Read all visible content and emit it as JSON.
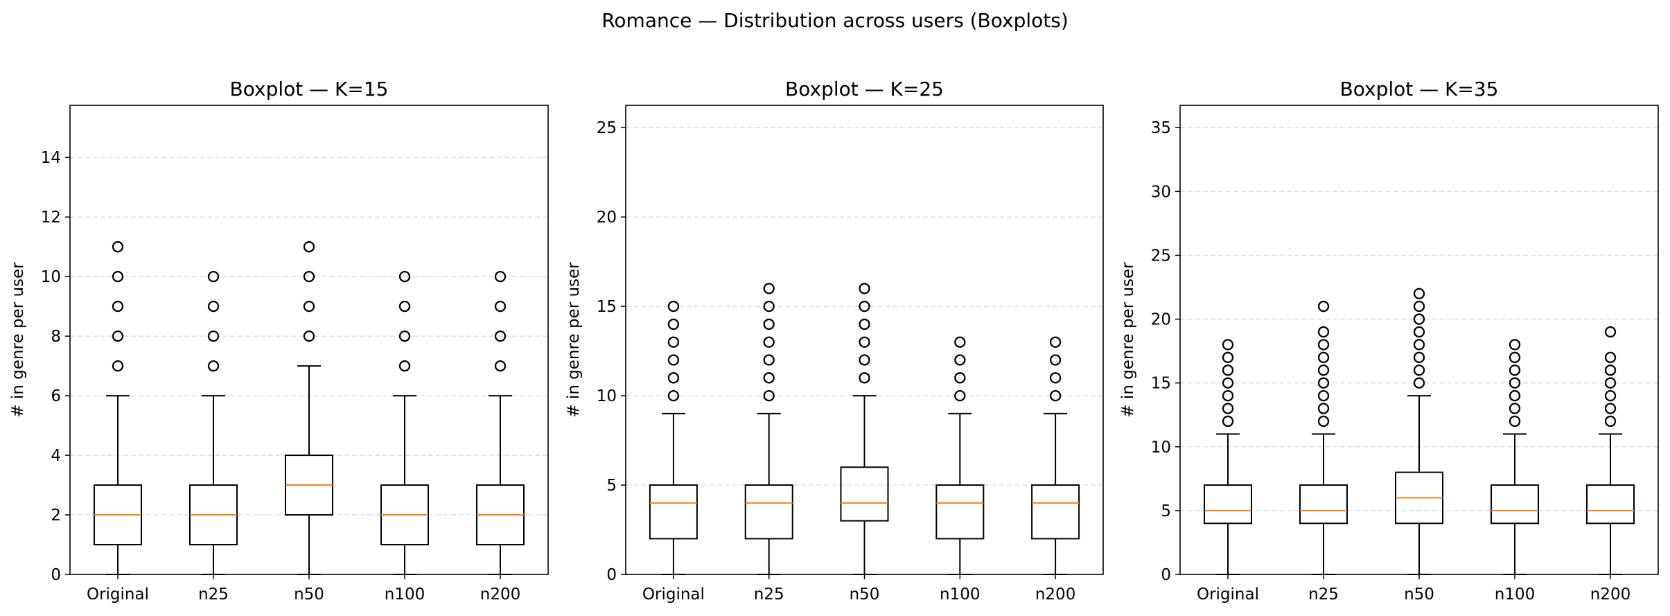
{
  "figure": {
    "suptitle": "Romance — Distribution across users (Boxplots)"
  },
  "chart_data": [
    {
      "type": "boxplot",
      "title": "Boxplot — K=15",
      "xlabel": "",
      "ylabel": "# in genre per user",
      "ylim": [
        0,
        15.75
      ],
      "yticks": [
        0,
        2,
        4,
        6,
        8,
        10,
        12,
        14
      ],
      "y_grid": true,
      "categories": [
        "Original",
        "n25",
        "n50",
        "n100",
        "n200"
      ],
      "boxes": [
        {
          "q1": 1,
          "median": 2,
          "q3": 3,
          "whisker_low": 0,
          "whisker_high": 6,
          "outliers": [
            7,
            8,
            9,
            10,
            11
          ]
        },
        {
          "q1": 1,
          "median": 2,
          "q3": 3,
          "whisker_low": 0,
          "whisker_high": 6,
          "outliers": [
            7,
            8,
            9,
            10
          ]
        },
        {
          "q1": 2,
          "median": 3,
          "q3": 4,
          "whisker_low": 0,
          "whisker_high": 7,
          "outliers": [
            8,
            9,
            10,
            11
          ]
        },
        {
          "q1": 1,
          "median": 2,
          "q3": 3,
          "whisker_low": 0,
          "whisker_high": 6,
          "outliers": [
            7,
            8,
            9,
            10
          ]
        },
        {
          "q1": 1,
          "median": 2,
          "q3": 3,
          "whisker_low": 0,
          "whisker_high": 6,
          "outliers": [
            7,
            8,
            9,
            10
          ]
        }
      ]
    },
    {
      "type": "boxplot",
      "title": "Boxplot — K=25",
      "xlabel": "",
      "ylabel": "# in genre per user",
      "ylim": [
        0,
        26.25
      ],
      "yticks": [
        0,
        5,
        10,
        15,
        20,
        25
      ],
      "y_grid": true,
      "categories": [
        "Original",
        "n25",
        "n50",
        "n100",
        "n200"
      ],
      "boxes": [
        {
          "q1": 2,
          "median": 4,
          "q3": 5,
          "whisker_low": 0,
          "whisker_high": 9,
          "outliers": [
            10,
            11,
            12,
            13,
            14,
            15
          ]
        },
        {
          "q1": 2,
          "median": 4,
          "q3": 5,
          "whisker_low": 0,
          "whisker_high": 9,
          "outliers": [
            10,
            11,
            12,
            13,
            14,
            15,
            16
          ]
        },
        {
          "q1": 3,
          "median": 4,
          "q3": 6,
          "whisker_low": 0,
          "whisker_high": 10,
          "outliers": [
            11,
            12,
            13,
            14,
            15,
            16
          ]
        },
        {
          "q1": 2,
          "median": 4,
          "q3": 5,
          "whisker_low": 0,
          "whisker_high": 9,
          "outliers": [
            10,
            11,
            12,
            13
          ]
        },
        {
          "q1": 2,
          "median": 4,
          "q3": 5,
          "whisker_low": 0,
          "whisker_high": 9,
          "outliers": [
            10,
            11,
            12,
            13
          ]
        }
      ]
    },
    {
      "type": "boxplot",
      "title": "Boxplot — K=35",
      "xlabel": "",
      "ylabel": "# in genre per user",
      "ylim": [
        0,
        36.75
      ],
      "yticks": [
        0,
        5,
        10,
        15,
        20,
        25,
        30,
        35
      ],
      "y_grid": true,
      "categories": [
        "Original",
        "n25",
        "n50",
        "n100",
        "n200"
      ],
      "boxes": [
        {
          "q1": 4,
          "median": 5,
          "q3": 7,
          "whisker_low": 0,
          "whisker_high": 11,
          "outliers": [
            12,
            13,
            14,
            15,
            16,
            17,
            18
          ]
        },
        {
          "q1": 4,
          "median": 5,
          "q3": 7,
          "whisker_low": 0,
          "whisker_high": 11,
          "outliers": [
            12,
            13,
            14,
            15,
            16,
            17,
            18,
            19,
            21
          ]
        },
        {
          "q1": 4,
          "median": 6,
          "q3": 8,
          "whisker_low": 0,
          "whisker_high": 14,
          "outliers": [
            15,
            16,
            17,
            18,
            19,
            20,
            21,
            22
          ]
        },
        {
          "q1": 4,
          "median": 5,
          "q3": 7,
          "whisker_low": 0,
          "whisker_high": 11,
          "outliers": [
            12,
            13,
            14,
            15,
            16,
            17,
            18
          ]
        },
        {
          "q1": 4,
          "median": 5,
          "q3": 7,
          "whisker_low": 0,
          "whisker_high": 11,
          "outliers": [
            12,
            13,
            14,
            15,
            16,
            17,
            19
          ]
        }
      ]
    }
  ],
  "colors": {
    "median": "#ff7f0e",
    "box": "#000000",
    "grid": "#dddddd"
  }
}
